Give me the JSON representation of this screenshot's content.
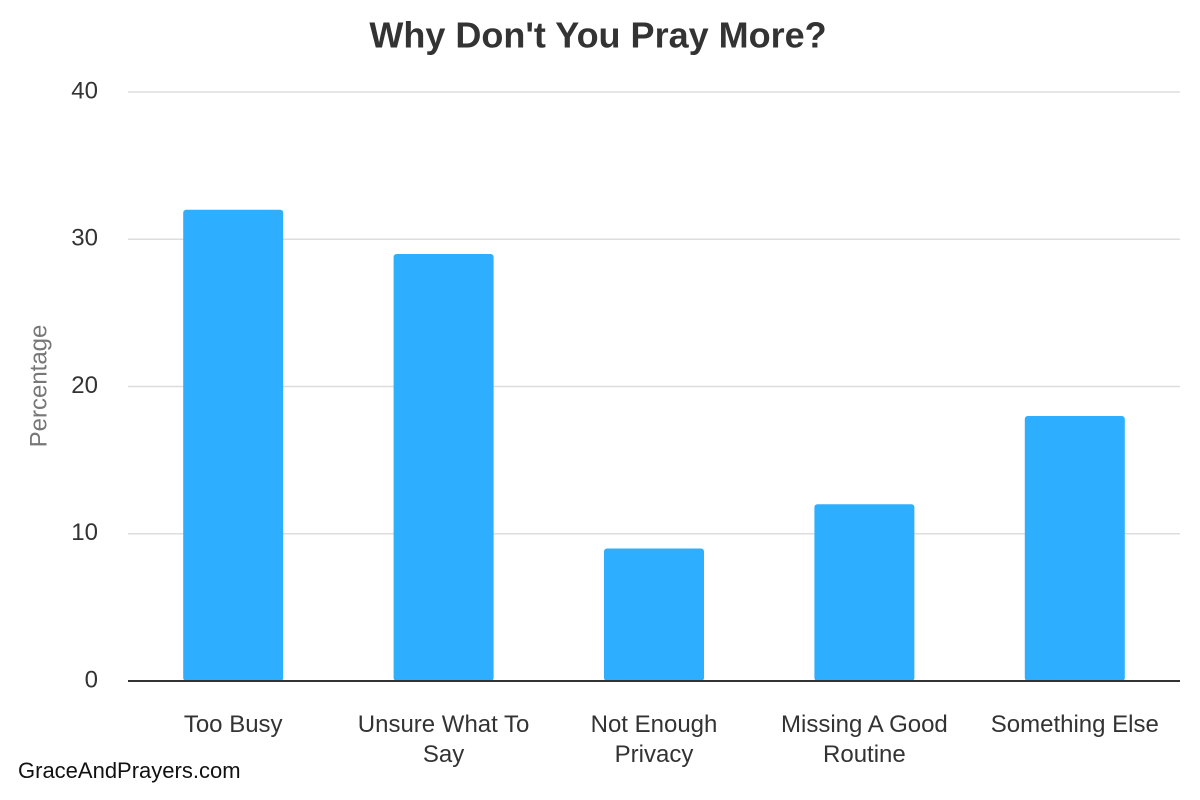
{
  "chart_data": {
    "type": "bar",
    "title": "Why Don't You Pray More?",
    "y_label": "Percentage",
    "categories": [
      "Too Busy",
      "Unsure What To Say",
      "Not Enough Privacy",
      "Missing A Good Routine",
      "Something Else"
    ],
    "values": [
      32,
      29,
      9,
      12,
      18
    ],
    "color": "#2eaeff",
    "ylim": [
      0,
      40
    ],
    "yticks": [
      0,
      10,
      20,
      30,
      40
    ],
    "grid": true
  },
  "watermark": "GraceAndPrayers.com"
}
